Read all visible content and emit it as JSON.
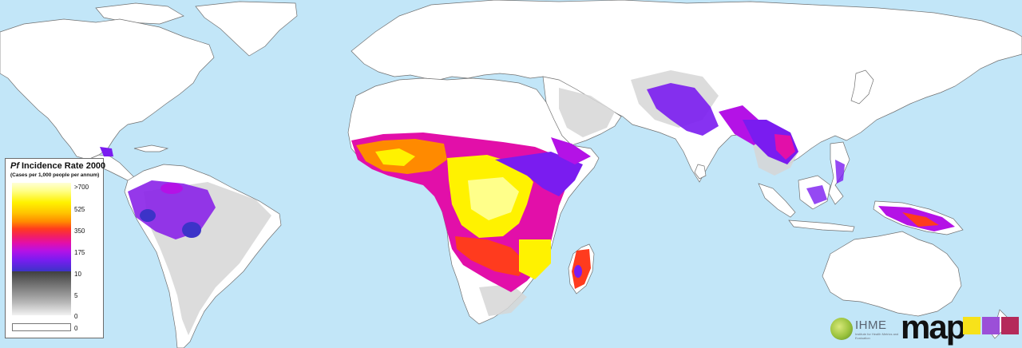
{
  "legend": {
    "title_italic": "Pf",
    "title_rest": "Incidence Rate 2000",
    "subtitle": "(Cases per 1,000 people per annum)",
    "ticks": [
      ">700",
      "525",
      "350",
      "175",
      "10",
      "5",
      "0",
      "0"
    ]
  },
  "logos": {
    "ihme_text": "IHME",
    "ihme_sub": "Institute for Health Metrics and Evaluation",
    "map_text": "map",
    "map_box_colors": [
      "#f7e21a",
      "#9b4fd8",
      "#b52a5a"
    ]
  },
  "colors": {
    "ocean": "#c2e6f8",
    "land": "#ffffff",
    "low_risk_gray": "#d6d6d6",
    "incidence_ramp": [
      "#3c33c8",
      "#7a1cf0",
      "#b412e6",
      "#e20fa9",
      "#ff3b1e",
      "#ff8a00",
      "#fff200",
      "#ffffd6"
    ]
  }
}
